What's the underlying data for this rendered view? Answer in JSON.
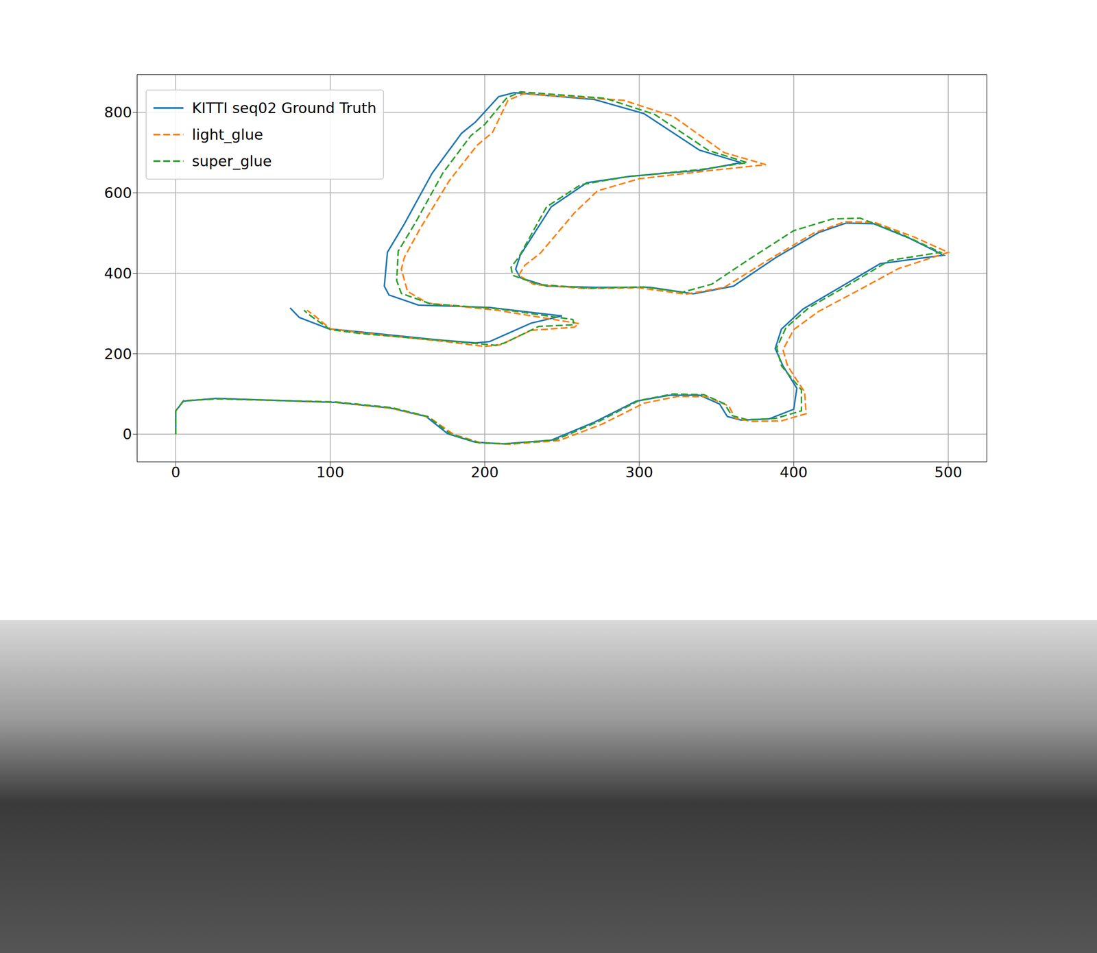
{
  "chart_data": {
    "type": "line",
    "xlim": [
      -25,
      525
    ],
    "ylim": [
      -69,
      894
    ],
    "xticks": [
      0,
      100,
      200,
      300,
      400,
      500
    ],
    "yticks": [
      0,
      200,
      400,
      600,
      800
    ],
    "grid": true,
    "legend": "upper left",
    "series": [
      {
        "name": "KITTI seq02 Ground Truth",
        "color": "#1f77b4",
        "line_style": "solid",
        "x": [
          0,
          0,
          5,
          26,
          103,
          139,
          162,
          176,
          194,
          212,
          243,
          271,
          298,
          320,
          339,
          352,
          357,
          366,
          384,
          400,
          402,
          393,
          388,
          392,
          406,
          429,
          456,
          497,
          475,
          452,
          434,
          416,
          388,
          361,
          335,
          307,
          271,
          240,
          223,
          220,
          223,
          243,
          266,
          294,
          339,
          366,
          339,
          303,
          271,
          219,
          209,
          194,
          185,
          166,
          148,
          137,
          135,
          138,
          157,
          203,
          250,
          230,
          203,
          194,
          171,
          117,
          99,
          80,
          74
        ],
        "values": [
          0,
          58,
          82,
          89,
          79,
          65,
          44,
          1,
          -20,
          -24,
          -15,
          30,
          82,
          97,
          97,
          75,
          44,
          35,
          38,
          62,
          114,
          170,
          213,
          261,
          311,
          363,
          424,
          445,
          487,
          523,
          525,
          501,
          438,
          368,
          349,
          365,
          365,
          368,
          389,
          410,
          445,
          565,
          625,
          641,
          656,
          675,
          706,
          797,
          832,
          849,
          839,
          776,
          748,
          649,
          523,
          452,
          368,
          346,
          321,
          315,
          294,
          276,
          230,
          227,
          234,
          255,
          262,
          290,
          314
        ]
      },
      {
        "name": "light_glue",
        "color": "#ff7f0e",
        "line_style": "dashed",
        "x": [
          0,
          0,
          5,
          27,
          104,
          140,
          164,
          180,
          198,
          216,
          248,
          276,
          303,
          325,
          344,
          358,
          362,
          372,
          392,
          408,
          407,
          396,
          393,
          400,
          416,
          441,
          468,
          500,
          478,
          452,
          433,
          413,
          383,
          355,
          330,
          300,
          265,
          232,
          222,
          226,
          236,
          258,
          273,
          300,
          345,
          382,
          355,
          322,
          290,
          225,
          215,
          205,
          195,
          177,
          158,
          148,
          146,
          150,
          163,
          208,
          261,
          258,
          230,
          210,
          200,
          175,
          120,
          100,
          90,
          85
        ],
        "values": [
          0,
          58,
          83,
          88,
          79,
          64,
          42,
          -1,
          -22,
          -25,
          -16,
          25,
          77,
          94,
          93,
          70,
          40,
          32,
          33,
          51,
          105,
          170,
          210,
          260,
          305,
          356,
          412,
          452,
          490,
          527,
          528,
          500,
          432,
          365,
          348,
          364,
          362,
          372,
          395,
          420,
          450,
          550,
          605,
          635,
          655,
          670,
          700,
          790,
          830,
          846,
          830,
          750,
          718,
          630,
          510,
          440,
          410,
          355,
          326,
          308,
          275,
          266,
          258,
          222,
          218,
          230,
          252,
          262,
          294,
          308
        ]
      },
      {
        "name": "super_glue",
        "color": "#2ca02c",
        "line_style": "dashed",
        "x": [
          0,
          0,
          5,
          27,
          104,
          140,
          163,
          178,
          196,
          214,
          246,
          274,
          300,
          322,
          342,
          355,
          360,
          370,
          388,
          405,
          405,
          392,
          389,
          395,
          410,
          435,
          462,
          495,
          470,
          443,
          425,
          400,
          370,
          347,
          328,
          303,
          268,
          235,
          218,
          217,
          222,
          240,
          262,
          292,
          340,
          370,
          345,
          310,
          278,
          223,
          214,
          200,
          191,
          173,
          155,
          144,
          143,
          146,
          165,
          208,
          257,
          258,
          235,
          213,
          207,
          175,
          120,
          100,
          87,
          83
        ],
        "values": [
          0,
          58,
          83,
          88,
          80,
          66,
          44,
          0,
          -21,
          -24,
          -14,
          32,
          84,
          100,
          98,
          76,
          46,
          36,
          39,
          58,
          110,
          170,
          215,
          265,
          315,
          370,
          432,
          452,
          497,
          537,
          535,
          506,
          432,
          373,
          353,
          366,
          363,
          372,
          395,
          415,
          440,
          565,
          620,
          640,
          658,
          675,
          705,
          795,
          835,
          851,
          835,
          770,
          742,
          650,
          525,
          455,
          382,
          350,
          324,
          312,
          285,
          272,
          268,
          227,
          221,
          232,
          250,
          260,
          295,
          308
        ]
      }
    ]
  }
}
